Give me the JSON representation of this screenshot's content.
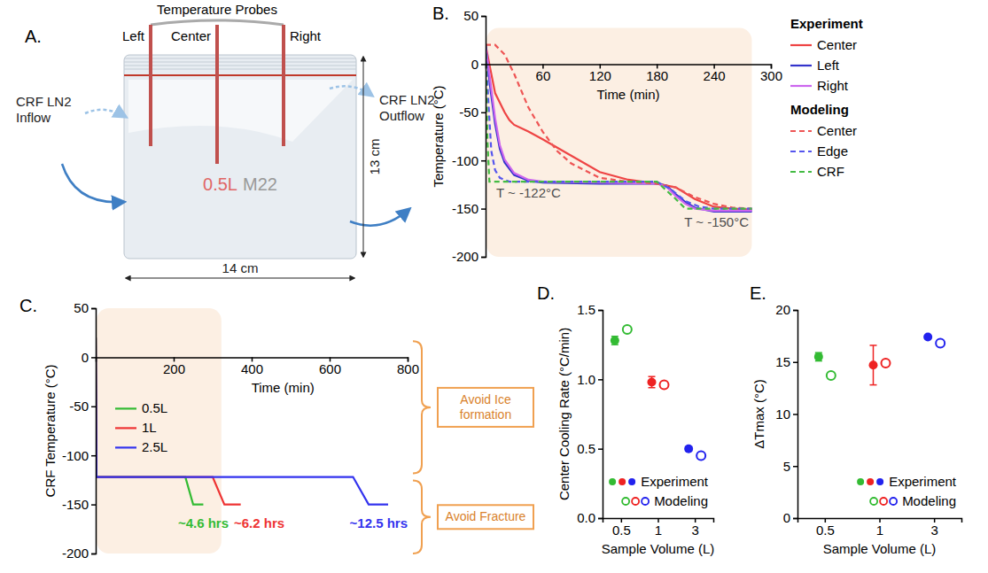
{
  "diagram": {
    "panel": "A.",
    "title": "Temperature Probes",
    "probes": [
      "Left",
      "Center",
      "Right"
    ],
    "inflow": "CRF LN2 Inflow",
    "outflow": "CRF LN2 Outflow",
    "height": "13 cm",
    "width": "14 cm",
    "volume": "0.5L",
    "solution": "M22"
  },
  "chart_data": [
    {
      "panel": "B.",
      "type": "line",
      "x_label": "Time (min)",
      "y_label": "Temperature (°C)",
      "xlim": [
        0,
        300
      ],
      "xticks": [
        60,
        120,
        180,
        240,
        300
      ],
      "ylim": [
        -200,
        50
      ],
      "yticks": [
        -200,
        -150,
        -100,
        -50,
        0,
        50
      ],
      "legend": "right",
      "annotations": [
        {
          "text": "T ~ -122°C",
          "color": "#4d4d4d"
        },
        {
          "text": "T ~ -150°C",
          "color": "#4d4d4d"
        }
      ],
      "series_groups": [
        {
          "name": "Experiment",
          "series": [
            {
              "name": "Center",
              "color": "#ee4444",
              "line_style": "solid",
              "x": [
                0,
                5,
                10,
                20,
                25,
                30,
                45,
                60,
                90,
                120,
                150,
                180,
                200,
                220,
                240,
                260,
                280
              ],
              "values": [
                20,
                -5,
                -30,
                -50,
                -58,
                -63,
                -70,
                -78,
                -95,
                -112,
                -120,
                -124,
                -128,
                -140,
                -148,
                -150,
                -151
              ]
            },
            {
              "name": "Left",
              "color": "#3333cc",
              "line_style": "solid",
              "x": [
                0,
                5,
                10,
                15,
                20,
                30,
                45,
                60,
                120,
                180,
                190,
                200,
                210,
                220,
                240,
                260,
                280
              ],
              "values": [
                20,
                -25,
                -62,
                -88,
                -102,
                -115,
                -121,
                -123,
                -124,
                -124,
                -126,
                -135,
                -143,
                -149,
                -153,
                -153,
                -153
              ]
            },
            {
              "name": "Right",
              "color": "#cc66ee",
              "line_style": "solid",
              "x": [
                0,
                5,
                10,
                15,
                20,
                30,
                45,
                60,
                120,
                180,
                190,
                200,
                210,
                220,
                240,
                260,
                280
              ],
              "values": [
                20,
                -18,
                -56,
                -84,
                -99,
                -113,
                -120,
                -122,
                -123,
                -124,
                -127,
                -137,
                -145,
                -150,
                -152,
                -152,
                -152
              ]
            }
          ]
        },
        {
          "name": "Modeling",
          "series": [
            {
              "name": "Center",
              "color": "#ee5555",
              "line_style": "dashed",
              "x": [
                0,
                10,
                20,
                30,
                45,
                60,
                75,
                90,
                120,
                150,
                180,
                200,
                220,
                240,
                260,
                280
              ],
              "values": [
                20,
                20,
                10,
                -10,
                -45,
                -70,
                -90,
                -103,
                -118,
                -122,
                -124,
                -128,
                -138,
                -145,
                -149,
                -150
              ]
            },
            {
              "name": "Edge",
              "color": "#5555ee",
              "line_style": "dashed",
              "x": [
                0,
                3,
                6,
                10,
                15,
                25,
                180,
                195,
                210,
                225,
                240,
                280
              ],
              "values": [
                20,
                -40,
                -90,
                -110,
                -118,
                -122,
                -122,
                -130,
                -142,
                -148,
                -150,
                -150
              ]
            },
            {
              "name": "CRF",
              "color": "#44bb44",
              "line_style": "dashed",
              "x": [
                0,
                2,
                4,
                180,
                200,
                210,
                280
              ],
              "values": [
                20,
                -80,
                -122,
                -122,
                -140,
                -150,
                -150
              ]
            }
          ]
        }
      ]
    },
    {
      "panel": "C.",
      "type": "line",
      "x_label": "Time (min)",
      "y_label": "CRF Temperature (°C)",
      "xlim": [
        0,
        800
      ],
      "xticks": [
        200,
        400,
        600,
        800
      ],
      "ylim": [
        -200,
        50
      ],
      "yticks": [
        -200,
        -150,
        -100,
        -50,
        0,
        50
      ],
      "legend": "left",
      "series": [
        {
          "name": "0.5L",
          "color": "#33bb33",
          "line_style": "solid",
          "x": [
            0,
            2,
            230,
            250,
            276
          ],
          "values": [
            20,
            -122,
            -122,
            -150,
            -150
          ]
        },
        {
          "name": "1L",
          "color": "#ee3333",
          "line_style": "solid",
          "x": [
            0,
            2,
            300,
            330,
            372
          ],
          "values": [
            20,
            -122,
            -122,
            -150,
            -150
          ]
        },
        {
          "name": "2.5L",
          "color": "#3333ee",
          "line_style": "solid",
          "x": [
            0,
            2,
            660,
            700,
            750
          ],
          "values": [
            20,
            -122,
            -122,
            -150,
            -150
          ]
        }
      ],
      "annotations": [
        {
          "text": "~4.6 hrs",
          "color": "#33bb33"
        },
        {
          "text": "~6.2 hrs",
          "color": "#ee3333"
        },
        {
          "text": "~12.5 hrs",
          "color": "#3333ee"
        }
      ],
      "boxes": [
        "Avoid Ice formation",
        "Avoid Fracture"
      ]
    },
    {
      "panel": "D.",
      "type": "scatter",
      "x_label": "Sample Volume (L)",
      "y_label": "Center Cooling Rate (°C/min)",
      "categories": [
        "0.5",
        "1",
        "3"
      ],
      "ylim": [
        0,
        1.5
      ],
      "yticks": [
        {
          "value": 0,
          "label": "0.0"
        },
        0.5,
        {
          "value": 1,
          "label": "1.0"
        },
        1.5
      ],
      "legend": "lower right",
      "series": [
        {
          "name": "Experiment",
          "marker": "filled",
          "colors": [
            "#33bb33",
            "#ee2222",
            "#2222ee"
          ],
          "values": [
            1.28,
            0.98,
            0.5
          ],
          "errors": [
            0.03,
            0.04,
            0.01
          ]
        },
        {
          "name": "Modeling",
          "marker": "open",
          "colors": [
            "#33bb33",
            "#ee2222",
            "#2222ee"
          ],
          "values": [
            1.36,
            0.96,
            0.45
          ]
        }
      ]
    },
    {
      "panel": "E.",
      "type": "scatter",
      "x_label": "Sample Volume (L)",
      "y_label": "ΔTmax (°C)",
      "categories": [
        "0.5",
        "1",
        "3"
      ],
      "ylim": [
        0,
        20
      ],
      "yticks": [
        0,
        5,
        10,
        15,
        20
      ],
      "legend": "lower right",
      "series": [
        {
          "name": "Experiment",
          "marker": "filled",
          "colors": [
            "#33bb33",
            "#ee2222",
            "#2222ee"
          ],
          "values": [
            15.5,
            14.7,
            17.4
          ],
          "errors": [
            0.4,
            1.9,
            null
          ]
        },
        {
          "name": "Modeling",
          "marker": "open",
          "colors": [
            "#33bb33",
            "#ee2222",
            "#2222ee"
          ],
          "values": [
            13.7,
            14.9,
            16.8
          ]
        }
      ]
    }
  ]
}
